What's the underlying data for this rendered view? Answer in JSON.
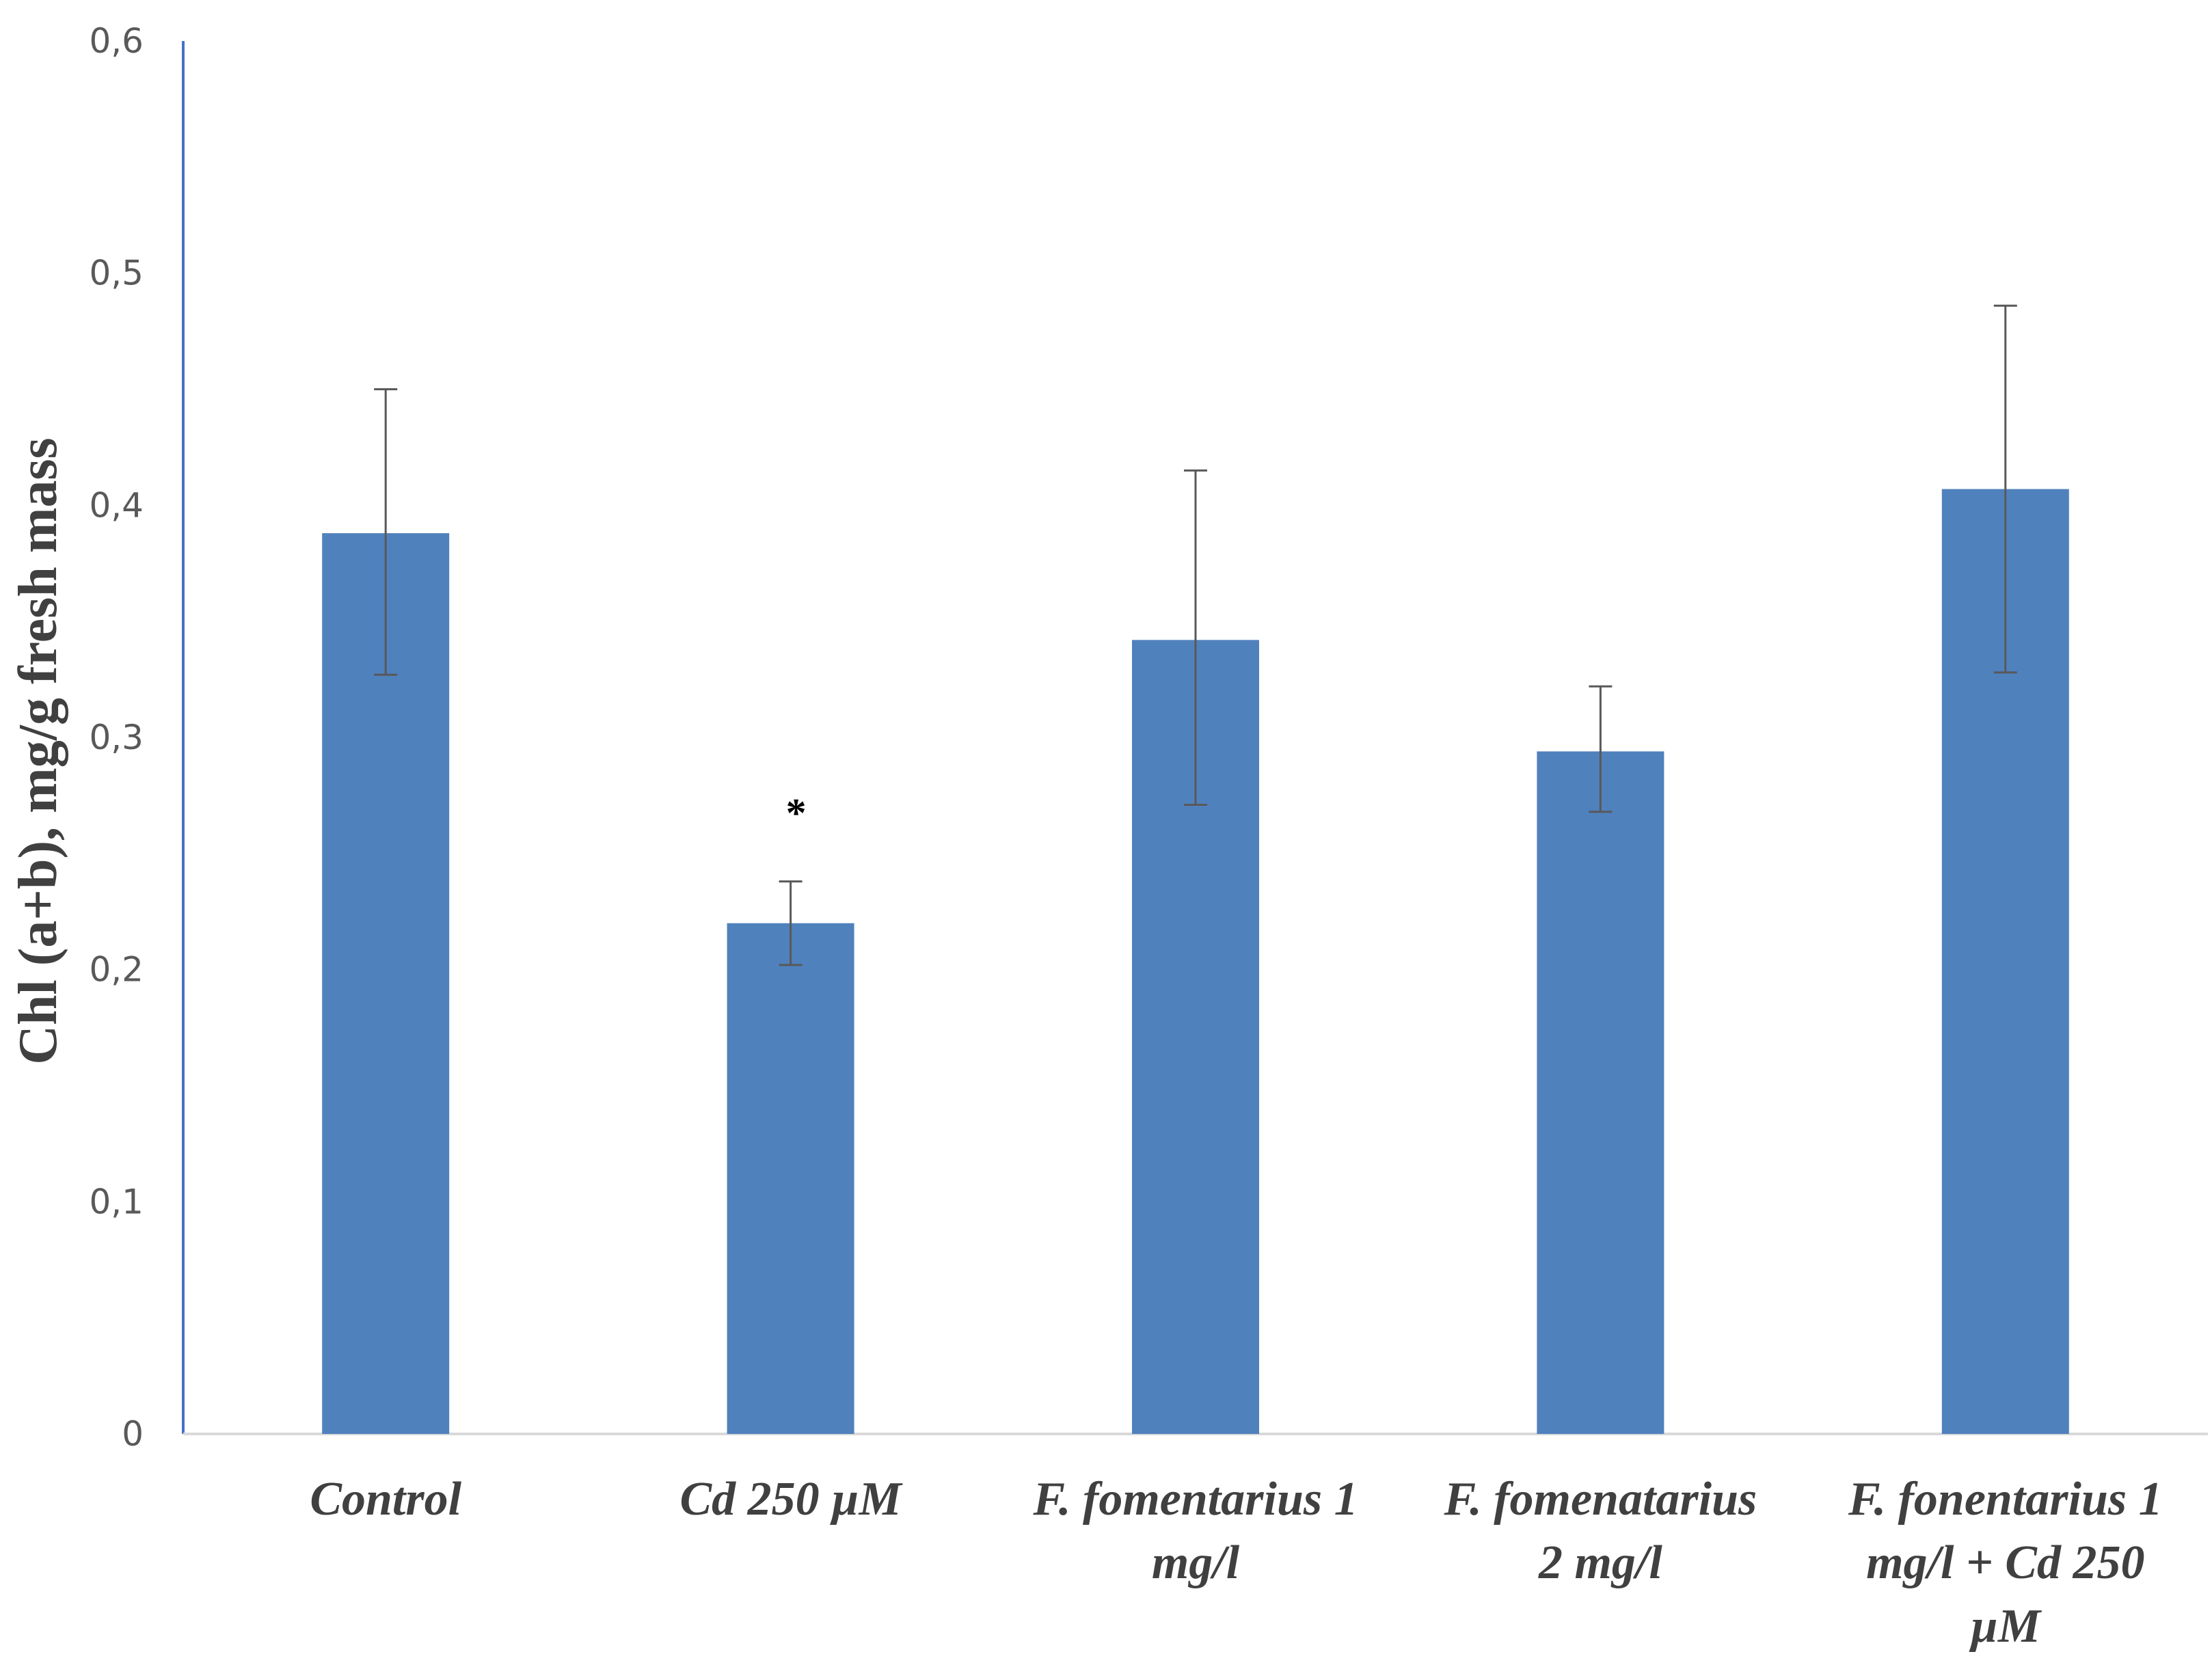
{
  "chart_data": {
    "type": "bar",
    "title": "",
    "xlabel": "",
    "ylabel": "Chl (a+b),  mg/g fresh mass",
    "ylim": [
      0,
      0.6
    ],
    "yticks": [
      "0",
      "0,1",
      "0,2",
      "0,3",
      "0,4",
      "0,5",
      "0,6"
    ],
    "categories": [
      [
        "Control"
      ],
      [
        "Cd 250 µM"
      ],
      [
        "F. fomentarius 1",
        "mg/l"
      ],
      [
        "F. fomenatarius",
        "2 mg/l"
      ],
      [
        "F. fonentarius 1",
        "mg/l + Cd 250",
        "µM"
      ]
    ],
    "values": [
      0.388,
      0.22,
      0.342,
      0.294,
      0.407
    ],
    "error_low": [
      0.327,
      0.202,
      0.271,
      0.268,
      0.328
    ],
    "error_high": [
      0.45,
      0.238,
      0.415,
      0.322,
      0.486
    ],
    "annotations": [
      "",
      "*",
      "",
      "",
      ""
    ],
    "bar_color": "#4f81bd",
    "axis_color": "#4472c4",
    "grid": false,
    "legend": "none"
  }
}
